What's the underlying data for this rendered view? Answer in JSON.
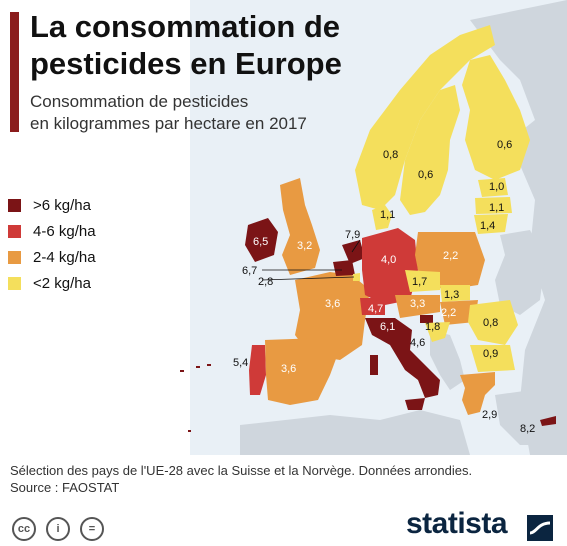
{
  "title": "La consommation de pesticides en Europe",
  "subtitle_line1": "Consommation de pesticides",
  "subtitle_line2": "en kilogrammes par hectare en 2017",
  "legend": [
    {
      "label": ">6 kg/ha",
      "color": "#7b1416"
    },
    {
      "label": "4-6 kg/ha",
      "color": "#cf3a38"
    },
    {
      "label": "2-4 kg/ha",
      "color": "#e89a42"
    },
    {
      "label": "<2 kg/ha",
      "color": "#f4df5c"
    }
  ],
  "map": {
    "sea_color": "#e9f0f6",
    "non_member_color": "#cfd6dd",
    "values": {
      "norway": "0,8",
      "sweden": "0,6",
      "finland": "0,6",
      "estonia": "1,0",
      "latvia": "1,1",
      "lithuania": "1,4",
      "denmark": "1,1",
      "ireland": "6,5",
      "uk": "3,2",
      "netherlands": "7,9",
      "belgium": "6,7",
      "luxembourg": "2,8",
      "germany": "4,0",
      "poland": "2,2",
      "czechia": "1,7",
      "slovakia": "1,3",
      "austria": "3,3",
      "hungary": "2,2",
      "france": "3,6",
      "switzerland": "4,7",
      "slovenia": "1,8",
      "italy": "6,1",
      "croatia": "4,6",
      "romania": "0,8",
      "bulgaria": "0,9",
      "portugal": "5,4",
      "spain": "3,6",
      "greece": "2,9",
      "cyprus": "8,2"
    }
  },
  "footer_line1": "Sélection des pays de l'UE-28 avec la Suisse et la Norvège. Données arrondies.",
  "footer_line2": "Source : FAOSTAT",
  "license_icons": [
    "cc-icon",
    "person-icon",
    "equals-icon"
  ],
  "license_icon_glyphs": [
    "cc",
    "i",
    "="
  ],
  "logo_text": "statista",
  "logo_color": "#0b2540"
}
